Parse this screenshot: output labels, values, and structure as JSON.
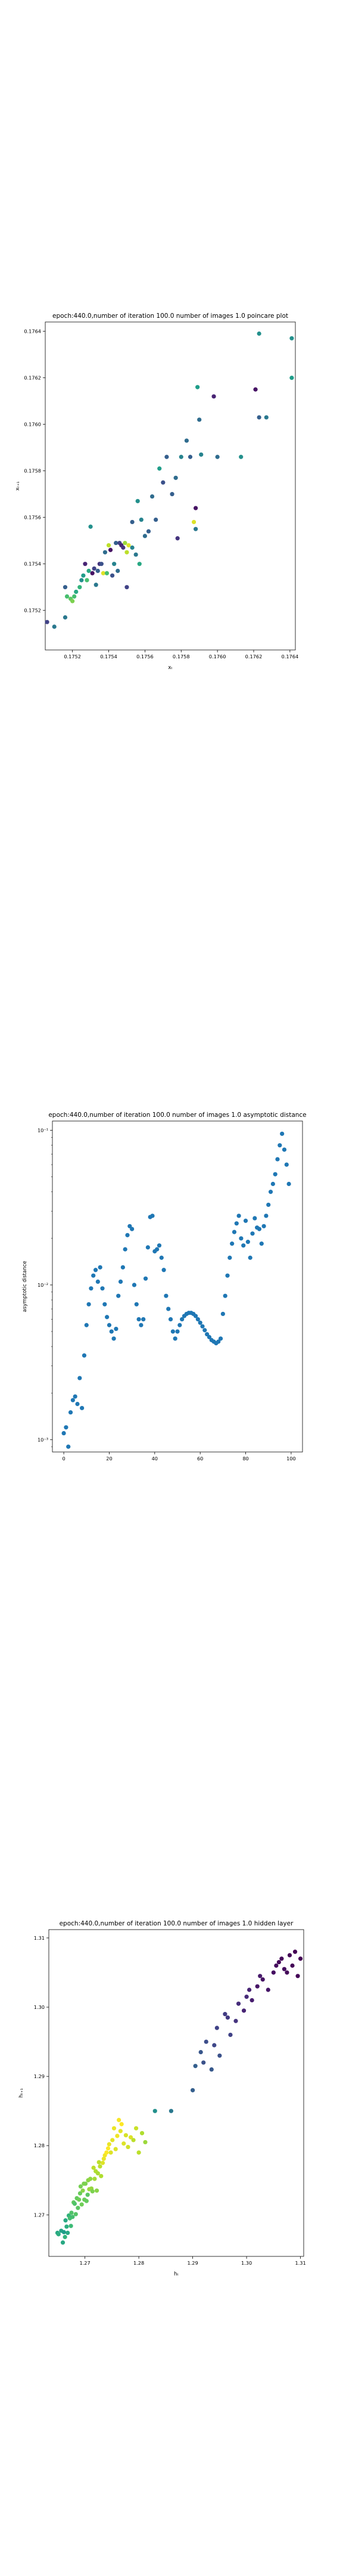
{
  "chart_data": [
    {
      "type": "scatter",
      "title": "epoch:440.0,number of iteration 100.0 number of images 1.0 poincare plot",
      "xlabel": "xₜ",
      "ylabel": "xₜ₊₁",
      "xlim": [
        0.17505,
        0.17643
      ],
      "ylim": [
        0.17503,
        0.17644
      ],
      "x_ticks": [
        0.1752,
        0.1754,
        0.1756,
        0.1758,
        0.176,
        0.1762,
        0.1764
      ],
      "y_ticks": [
        0.1752,
        0.1754,
        0.1756,
        0.1758,
        0.176,
        0.1762,
        0.1764
      ],
      "color_scale": "viridis",
      "grid": false,
      "points": [
        [
          0.17506,
          0.17515,
          0.2
        ],
        [
          0.1751,
          0.17513,
          0.4
        ],
        [
          0.17516,
          0.17517,
          0.4
        ],
        [
          0.17516,
          0.1753,
          0.3
        ],
        [
          0.17517,
          0.17526,
          0.7
        ],
        [
          0.17519,
          0.17525,
          0.75
        ],
        [
          0.1752,
          0.17524,
          0.8
        ],
        [
          0.17521,
          0.17526,
          0.7
        ],
        [
          0.17522,
          0.17528,
          0.6
        ],
        [
          0.17524,
          0.1753,
          0.65
        ],
        [
          0.17525,
          0.17533,
          0.5
        ],
        [
          0.17526,
          0.17535,
          0.55
        ],
        [
          0.17527,
          0.1754,
          0.1
        ],
        [
          0.17528,
          0.17533,
          0.7
        ],
        [
          0.17529,
          0.17537,
          0.6
        ],
        [
          0.1753,
          0.17556,
          0.5
        ],
        [
          0.17531,
          0.17536,
          0.05
        ],
        [
          0.17532,
          0.17538,
          0.2
        ],
        [
          0.17533,
          0.17531,
          0.4
        ],
        [
          0.17534,
          0.17537,
          0.3
        ],
        [
          0.17535,
          0.1754,
          0.15
        ],
        [
          0.17536,
          0.1754,
          0.25
        ],
        [
          0.17537,
          0.17536,
          0.95
        ],
        [
          0.17538,
          0.17545,
          0.35
        ],
        [
          0.17539,
          0.17536,
          0.7
        ],
        [
          0.1754,
          0.17548,
          0.9
        ],
        [
          0.17541,
          0.17546,
          0.05
        ],
        [
          0.17542,
          0.17535,
          0.25
        ],
        [
          0.17543,
          0.1754,
          0.45
        ],
        [
          0.17544,
          0.17549,
          0.3
        ],
        [
          0.17545,
          0.17537,
          0.35
        ],
        [
          0.17546,
          0.17549,
          0.2
        ],
        [
          0.17547,
          0.17548,
          0.1
        ],
        [
          0.17548,
          0.17547,
          0.15
        ],
        [
          0.17549,
          0.17549,
          0.85
        ],
        [
          0.1755,
          0.17545,
          0.9
        ],
        [
          0.1755,
          0.1753,
          0.2
        ],
        [
          0.17551,
          0.17548,
          0.95
        ],
        [
          0.17553,
          0.17547,
          0.45
        ],
        [
          0.17553,
          0.17558,
          0.3
        ],
        [
          0.17555,
          0.17544,
          0.4
        ],
        [
          0.17556,
          0.17567,
          0.5
        ],
        [
          0.17557,
          0.1754,
          0.6
        ],
        [
          0.17558,
          0.17559,
          0.45
        ],
        [
          0.1756,
          0.17552,
          0.35
        ],
        [
          0.17562,
          0.17554,
          0.3
        ],
        [
          0.17564,
          0.17569,
          0.35
        ],
        [
          0.17566,
          0.17559,
          0.3
        ],
        [
          0.17568,
          0.17581,
          0.55
        ],
        [
          0.1757,
          0.17575,
          0.25
        ],
        [
          0.17572,
          0.17586,
          0.3
        ],
        [
          0.17575,
          0.1757,
          0.3
        ],
        [
          0.17577,
          0.17577,
          0.35
        ],
        [
          0.17578,
          0.17551,
          0.15
        ],
        [
          0.1758,
          0.17586,
          0.45
        ],
        [
          0.17583,
          0.17593,
          0.35
        ],
        [
          0.17585,
          0.17586,
          0.3
        ],
        [
          0.17587,
          0.17558,
          0.95
        ],
        [
          0.17588,
          0.17564,
          0.05
        ],
        [
          0.17588,
          0.17555,
          0.4
        ],
        [
          0.17589,
          0.17616,
          0.55
        ],
        [
          0.1759,
          0.17602,
          0.35
        ],
        [
          0.17591,
          0.17587,
          0.45
        ],
        [
          0.17598,
          0.17612,
          0.1
        ],
        [
          0.176,
          0.17586,
          0.35
        ],
        [
          0.17613,
          0.17586,
          0.5
        ],
        [
          0.17621,
          0.17615,
          0.05
        ],
        [
          0.17623,
          0.17603,
          0.3
        ],
        [
          0.17623,
          0.17639,
          0.5
        ],
        [
          0.17627,
          0.17603,
          0.4
        ],
        [
          0.17641,
          0.17637,
          0.5
        ],
        [
          0.17641,
          0.1762,
          0.55
        ]
      ]
    },
    {
      "type": "scatter",
      "title": "epoch:440.0,number of iteration 100.0  number of images 1.0 asymptotic distance",
      "xlabel": "iteration",
      "ylabel": "asymptotic distance",
      "xlim": [
        -5,
        105
      ],
      "ylim_log10": [
        -3.08,
        -0.94
      ],
      "x_ticks": [
        0,
        20,
        40,
        60,
        80,
        100
      ],
      "y_ticks": [
        "10⁻³",
        "10⁻²",
        "10⁻¹"
      ],
      "y_scale": "log",
      "marker_color": "#1f77b4",
      "grid": false,
      "x": [
        0,
        1,
        2,
        3,
        4,
        5,
        6,
        7,
        8,
        9,
        10,
        11,
        12,
        13,
        14,
        15,
        16,
        17,
        18,
        19,
        20,
        21,
        22,
        23,
        24,
        25,
        26,
        27,
        28,
        29,
        30,
        31,
        32,
        33,
        34,
        35,
        36,
        37,
        38,
        39,
        40,
        41,
        42,
        43,
        44,
        45,
        46,
        47,
        48,
        49,
        50,
        51,
        52,
        53,
        54,
        55,
        56,
        57,
        58,
        59,
        60,
        61,
        62,
        63,
        64,
        65,
        66,
        67,
        68,
        69,
        70,
        71,
        72,
        73,
        74,
        75,
        76,
        77,
        78,
        79,
        80,
        81,
        82,
        83,
        84,
        85,
        86,
        87,
        88,
        89,
        90,
        91,
        92,
        93,
        94,
        95,
        96,
        97,
        98,
        99
      ],
      "y": [
        0.0011,
        0.0012,
        0.0009,
        0.0015,
        0.0018,
        0.0019,
        0.0017,
        0.0025,
        0.0016,
        0.0035,
        0.0055,
        0.0075,
        0.0095,
        0.0115,
        0.0125,
        0.0105,
        0.013,
        0.0095,
        0.0075,
        0.0062,
        0.0055,
        0.005,
        0.0045,
        0.0052,
        0.0085,
        0.0105,
        0.013,
        0.017,
        0.021,
        0.024,
        0.023,
        0.01,
        0.0075,
        0.006,
        0.0055,
        0.006,
        0.011,
        0.0175,
        0.0275,
        0.028,
        0.0165,
        0.017,
        0.018,
        0.015,
        0.0125,
        0.0085,
        0.007,
        0.006,
        0.005,
        0.0045,
        0.005,
        0.0055,
        0.006,
        0.0063,
        0.0065,
        0.0066,
        0.0066,
        0.0065,
        0.0063,
        0.006,
        0.0057,
        0.0054,
        0.0051,
        0.0048,
        0.0046,
        0.0044,
        0.0043,
        0.0042,
        0.0043,
        0.0045,
        0.0065,
        0.0085,
        0.0115,
        0.015,
        0.0185,
        0.022,
        0.025,
        0.028,
        0.02,
        0.018,
        0.026,
        0.019,
        0.015,
        0.0215,
        0.027,
        0.0235,
        0.023,
        0.0185,
        0.024,
        0.028,
        0.033,
        0.04,
        0.045,
        0.052,
        0.065,
        0.08,
        0.095,
        0.075,
        0.06,
        0.045
      ]
    },
    {
      "type": "scatter",
      "title": "epoch:440.0,number of iteration 100.0  number of images 1.0 hidden layer",
      "xlabel": "hₜ",
      "ylabel": "hₜ₊₁",
      "xlim": [
        1.2633,
        1.3106
      ],
      "ylim": [
        1.264,
        1.3112
      ],
      "x_ticks": [
        1.27,
        1.28,
        1.29,
        1.3,
        1.31
      ],
      "y_ticks": [
        1.27,
        1.28,
        1.29,
        1.3,
        1.31
      ],
      "color_scale": "viridis",
      "grid": false,
      "points": [
        [
          1.2649,
          1.2674,
          0.6
        ],
        [
          1.2651,
          1.2672,
          0.62
        ],
        [
          1.2656,
          1.2677,
          0.58
        ],
        [
          1.2659,
          1.266,
          0.6
        ],
        [
          1.2661,
          1.2675,
          0.55
        ],
        [
          1.2663,
          1.2668,
          0.65
        ],
        [
          1.2664,
          1.2692,
          0.6
        ],
        [
          1.2666,
          1.2683,
          0.62
        ],
        [
          1.2668,
          1.2674,
          0.6
        ],
        [
          1.267,
          1.2699,
          0.65
        ],
        [
          1.2672,
          1.2695,
          0.7
        ],
        [
          1.2674,
          1.2684,
          0.68
        ],
        [
          1.2675,
          1.2703,
          0.72
        ],
        [
          1.2677,
          1.2697,
          0.7
        ],
        [
          1.2679,
          1.2718,
          0.75
        ],
        [
          1.2681,
          1.2716,
          0.72
        ],
        [
          1.2683,
          1.2701,
          0.73
        ],
        [
          1.2685,
          1.2724,
          0.76
        ],
        [
          1.2687,
          1.271,
          0.74
        ],
        [
          1.2689,
          1.2722,
          0.78
        ],
        [
          1.2691,
          1.2731,
          0.77
        ],
        [
          1.2692,
          1.2741,
          0.79
        ],
        [
          1.2694,
          1.2715,
          0.78
        ],
        [
          1.2696,
          1.2735,
          0.82
        ],
        [
          1.2698,
          1.2745,
          0.8
        ],
        [
          1.2699,
          1.2722,
          0.77
        ],
        [
          1.2701,
          1.2745,
          0.8
        ],
        [
          1.2703,
          1.272,
          0.76
        ],
        [
          1.2705,
          1.2729,
          0.74
        ],
        [
          1.2706,
          1.275,
          0.82
        ],
        [
          1.2708,
          1.2737,
          0.85
        ],
        [
          1.271,
          1.2752,
          0.83
        ],
        [
          1.2712,
          1.2738,
          0.84
        ],
        [
          1.2714,
          1.2734,
          0.8
        ],
        [
          1.2716,
          1.2768,
          0.9
        ],
        [
          1.2718,
          1.2752,
          0.86
        ],
        [
          1.272,
          1.2763,
          0.88
        ],
        [
          1.2722,
          1.2735,
          0.82
        ],
        [
          1.2724,
          1.276,
          0.87
        ],
        [
          1.2726,
          1.2776,
          0.9
        ],
        [
          1.2728,
          1.277,
          0.9
        ],
        [
          1.273,
          1.2756,
          0.88
        ],
        [
          1.2733,
          1.2775,
          0.95
        ],
        [
          1.2735,
          1.2781,
          0.97
        ],
        [
          1.2737,
          1.2786,
          0.98
        ],
        [
          1.274,
          1.279,
          1.0
        ],
        [
          1.2743,
          1.2796,
          1.0
        ],
        [
          1.2745,
          1.2802,
          0.97
        ],
        [
          1.2748,
          1.279,
          0.95
        ],
        [
          1.2751,
          1.2808,
          0.96
        ],
        [
          1.2754,
          1.2825,
          0.97
        ],
        [
          1.2757,
          1.2795,
          0.95
        ],
        [
          1.276,
          1.2814,
          0.98
        ],
        [
          1.2763,
          1.2837,
          0.99
        ],
        [
          1.2766,
          1.2821,
          0.96
        ],
        [
          1.2768,
          1.2831,
          1.0
        ],
        [
          1.2772,
          1.2803,
          0.95
        ],
        [
          1.2776,
          1.2815,
          0.94
        ],
        [
          1.278,
          1.2798,
          0.93
        ],
        [
          1.2785,
          1.2812,
          0.95
        ],
        [
          1.279,
          1.2808,
          0.9
        ],
        [
          1.2795,
          1.2825,
          0.92
        ],
        [
          1.28,
          1.279,
          0.9
        ],
        [
          1.2806,
          1.2818,
          0.88
        ],
        [
          1.2812,
          1.2805,
          0.85
        ],
        [
          1.283,
          1.285,
          0.5
        ],
        [
          1.286,
          1.285,
          0.4
        ],
        [
          1.29,
          1.288,
          0.3
        ],
        [
          1.292,
          1.292,
          0.25
        ],
        [
          1.2935,
          1.291,
          0.28
        ],
        [
          1.294,
          1.2945,
          0.22
        ],
        [
          1.295,
          1.293,
          0.25
        ],
        [
          1.296,
          1.299,
          0.18
        ],
        [
          1.297,
          1.296,
          0.2
        ],
        [
          1.298,
          1.298,
          0.15
        ],
        [
          1.2995,
          1.2995,
          0.1
        ],
        [
          1.3,
          1.3015,
          0.12
        ],
        [
          1.301,
          1.301,
          0.08
        ],
        [
          1.302,
          1.303,
          0.06
        ],
        [
          1.303,
          1.304,
          0.05
        ],
        [
          1.304,
          1.3025,
          0.06
        ],
        [
          1.305,
          1.305,
          0.04
        ],
        [
          1.3055,
          1.306,
          0.03
        ],
        [
          1.306,
          1.3065,
          0.02
        ],
        [
          1.3065,
          1.307,
          0.02
        ],
        [
          1.307,
          1.3055,
          0.03
        ],
        [
          1.3075,
          1.305,
          0.02
        ],
        [
          1.308,
          1.3075,
          0.01
        ],
        [
          1.3085,
          1.306,
          0.01
        ],
        [
          1.309,
          1.308,
          0.0
        ],
        [
          1.3095,
          1.3045,
          0.01
        ],
        [
          1.31,
          1.307,
          0.0
        ],
        [
          1.2905,
          1.2915,
          0.3
        ],
        [
          1.2915,
          1.2935,
          0.27
        ],
        [
          1.2925,
          1.295,
          0.24
        ],
        [
          1.2945,
          1.297,
          0.2
        ],
        [
          1.2965,
          1.2985,
          0.17
        ],
        [
          1.2985,
          1.3005,
          0.13
        ],
        [
          1.3005,
          1.3025,
          0.1
        ],
        [
          1.3025,
          1.3045,
          0.07
        ]
      ]
    }
  ]
}
